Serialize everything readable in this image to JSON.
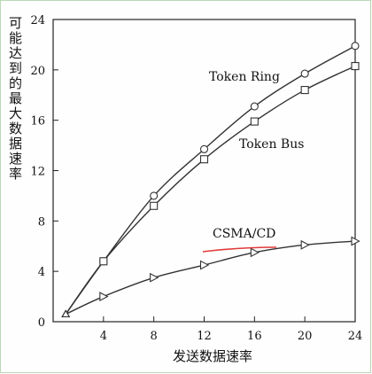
{
  "chart_data": {
    "type": "line",
    "xlabel": "发送数据速率",
    "ylabel": "可能达到的最大数据速率",
    "xlim": [
      0,
      24
    ],
    "ylim": [
      0,
      24
    ],
    "xticks": [
      4,
      8,
      12,
      16,
      20,
      24
    ],
    "yticks": [
      0,
      4,
      8,
      12,
      16,
      20,
      24
    ],
    "grid": false,
    "series": [
      {
        "name": "Token Ring",
        "marker": "circle",
        "x": [
          1,
          4,
          8,
          12,
          16,
          20,
          24
        ],
        "y": [
          0.6,
          4.8,
          10.0,
          13.7,
          17.1,
          19.7,
          21.9
        ]
      },
      {
        "name": "Token Bus",
        "marker": "square",
        "x": [
          1,
          4,
          8,
          12,
          16,
          20,
          24
        ],
        "y": [
          0.6,
          4.8,
          9.2,
          12.9,
          15.9,
          18.4,
          20.3
        ]
      },
      {
        "name": "CSMA/CD",
        "marker": "triangle-right",
        "x": [
          1,
          4,
          8,
          12,
          16,
          20,
          24
        ],
        "y": [
          0.6,
          2.0,
          3.5,
          4.5,
          5.5,
          6.1,
          6.4
        ]
      }
    ]
  }
}
